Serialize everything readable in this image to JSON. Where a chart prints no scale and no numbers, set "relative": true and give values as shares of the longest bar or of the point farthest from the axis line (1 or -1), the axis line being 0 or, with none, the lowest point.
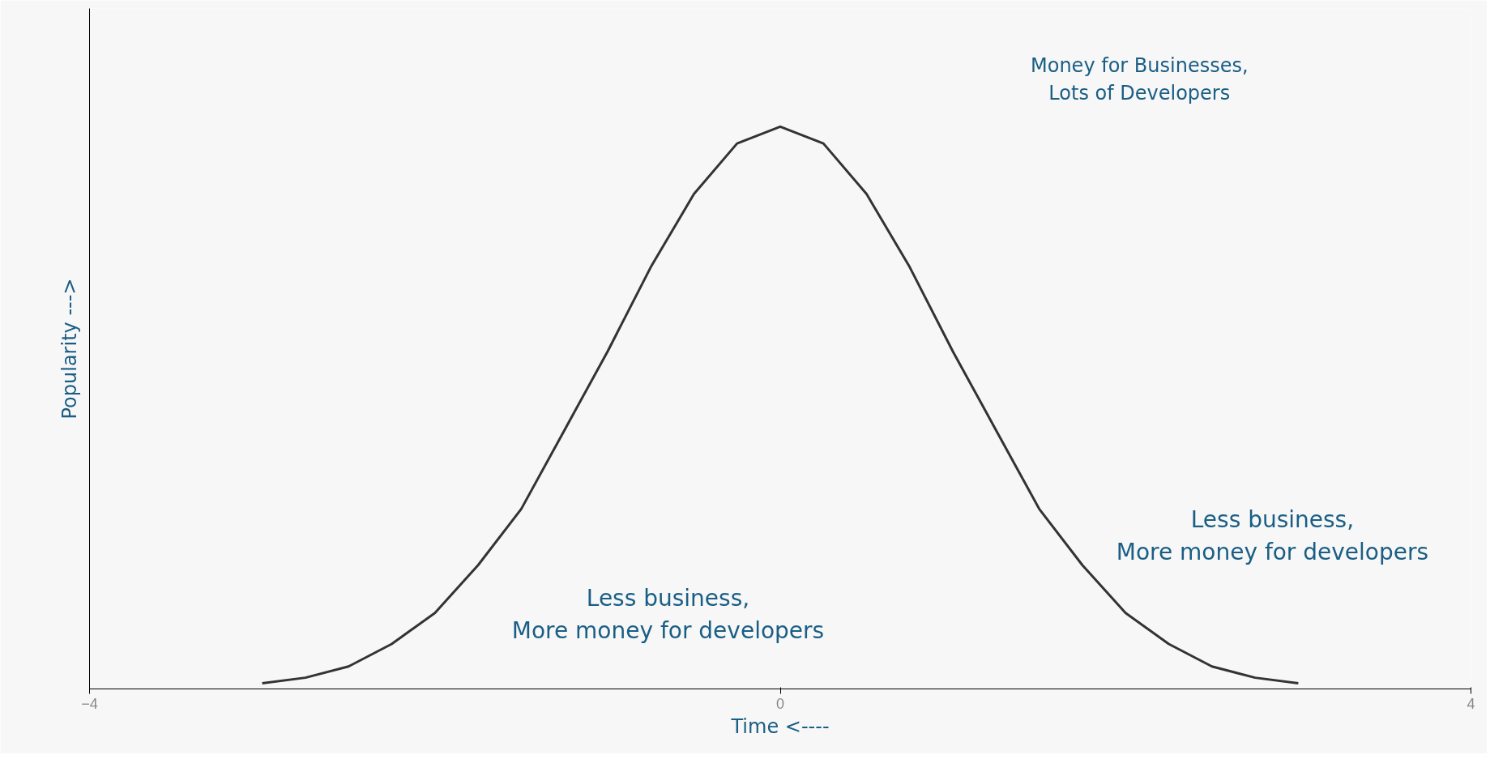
{
  "chart_data": {
    "type": "line",
    "relative": true,
    "xlabel": "Time <----",
    "ylabel": "Popularity --->",
    "x": [
      -3.0,
      -2.75,
      -2.5,
      -2.25,
      -2.0,
      -1.75,
      -1.5,
      -1.25,
      -1.0,
      -0.75,
      -0.5,
      -0.25,
      0.0,
      0.25,
      0.5,
      0.75,
      1.0,
      1.25,
      1.5,
      1.75,
      2.0,
      2.25,
      2.5,
      2.75,
      3.0
    ],
    "series": [
      {
        "color": "#333333",
        "values": [
          0.01,
          0.02,
          0.04,
          0.08,
          0.135,
          0.22,
          0.32,
          0.46,
          0.6,
          0.75,
          0.88,
          0.97,
          1.0,
          0.97,
          0.88,
          0.75,
          0.6,
          0.46,
          0.32,
          0.22,
          0.135,
          0.08,
          0.04,
          0.02,
          0.01
        ]
      }
    ],
    "xlim": [
      -4,
      4
    ],
    "xticks": [
      -4,
      0,
      4
    ],
    "grid": false,
    "marker": "none",
    "line_style": "solid",
    "annotations": [
      "Money for Businesses,\nLots of Developers",
      "Less business,\nMore money for developers",
      "Less business,\nMore money for developers"
    ]
  }
}
